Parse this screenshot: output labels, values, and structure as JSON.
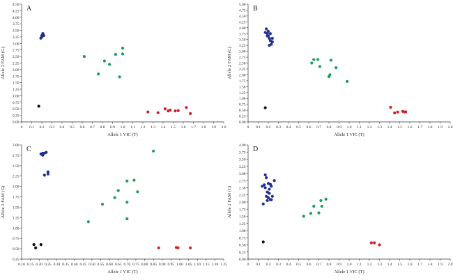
{
  "chart_data": [
    {
      "type": "scatter",
      "panel_label": "A",
      "xlabel": "Allele 1 VIC (T)",
      "ylabel": "Allele 2 FAM (G)",
      "xlim": [
        0,
        2.0
      ],
      "ylim": [
        0,
        4.5
      ],
      "x_ticks": [
        "0",
        "0.1",
        "0.2",
        "0.3",
        "0.4",
        "0.5",
        "0.6",
        "0.7",
        "0.8",
        "0.9",
        "1.0",
        "1.1",
        "1.2",
        "1.3",
        "1.4",
        "1.5",
        "1.6",
        "1.7",
        "1.8",
        "1.9",
        "2.0"
      ],
      "y_ticks": [
        "0.00",
        "0.25",
        "0.50",
        "0.75",
        "1.00",
        "1.25",
        "1.50",
        "1.75",
        "2.00",
        "2.25",
        "2.50",
        "2.75",
        "3.00",
        "3.25",
        "3.50",
        "3.75",
        "4.00",
        "4.25",
        "4.50"
      ],
      "series": [
        {
          "color": "#1f2e8f",
          "points": [
            [
              0.19,
              3.2
            ],
            [
              0.2,
              3.3
            ],
            [
              0.21,
              3.38
            ],
            [
              0.22,
              3.3
            ],
            [
              0.2,
              3.25
            ]
          ]
        },
        {
          "color": "#1a9e57",
          "points": [
            [
              0.62,
              2.5
            ],
            [
              0.76,
              1.83
            ],
            [
              0.82,
              2.33
            ],
            [
              0.87,
              2.2
            ],
            [
              0.93,
              2.58
            ],
            [
              0.97,
              1.72
            ],
            [
              1.0,
              2.6
            ],
            [
              1.0,
              2.82
            ]
          ]
        },
        {
          "color": "#d0202e",
          "points": [
            [
              1.25,
              0.38
            ],
            [
              1.35,
              0.35
            ],
            [
              1.42,
              0.5
            ],
            [
              1.45,
              0.42
            ],
            [
              1.47,
              0.45
            ],
            [
              1.52,
              0.42
            ],
            [
              1.55,
              0.43
            ],
            [
              1.63,
              0.55
            ],
            [
              1.67,
              0.32
            ]
          ]
        },
        {
          "color": "#111111",
          "points": [
            [
              0.17,
              0.6
            ]
          ]
        }
      ]
    },
    {
      "type": "scatter",
      "panel_label": "B",
      "xlabel": "Allele 1 VIC (T)",
      "ylabel": "Allele 2 FAM (C)",
      "xlim": [
        0,
        2.0
      ],
      "ylim": [
        0,
        5.0
      ],
      "x_ticks": [
        "0",
        "0.1",
        "0.2",
        "0.3",
        "0.4",
        "0.5",
        "0.6",
        "0.7",
        "0.8",
        "0.9",
        "1.0",
        "1.1",
        "1.2",
        "1.3",
        "1.4",
        "1.5",
        "1.6",
        "1.7",
        "1.8",
        "1.9",
        "2.0"
      ],
      "y_ticks": [
        "0.00",
        "0.25",
        "0.50",
        "0.75",
        "1.00",
        "1.25",
        "1.50",
        "1.75",
        "2.00",
        "2.25",
        "2.50",
        "2.75",
        "3.00",
        "3.25",
        "3.50",
        "3.75",
        "4.00",
        "4.25",
        "4.50",
        "4.75",
        "5.00"
      ],
      "series": [
        {
          "color": "#1f2e8f",
          "points": [
            [
              0.17,
              3.8
            ],
            [
              0.18,
              3.95
            ],
            [
              0.19,
              3.75
            ],
            [
              0.2,
              3.85
            ],
            [
              0.2,
              3.65
            ],
            [
              0.21,
              3.55
            ],
            [
              0.22,
              3.75
            ],
            [
              0.22,
              3.45
            ],
            [
              0.23,
              3.3
            ],
            [
              0.24,
              3.4
            ],
            [
              0.24,
              3.55
            ],
            [
              0.21,
              3.25
            ],
            [
              0.19,
              3.65
            ]
          ]
        },
        {
          "color": "#1a9e57",
          "points": [
            [
              0.63,
              2.5
            ],
            [
              0.65,
              2.65
            ],
            [
              0.69,
              2.65
            ],
            [
              0.71,
              2.35
            ],
            [
              0.8,
              1.92
            ],
            [
              0.81,
              2.0
            ],
            [
              0.82,
              2.62
            ],
            [
              0.87,
              2.3
            ],
            [
              0.98,
              1.72
            ]
          ]
        },
        {
          "color": "#d0202e",
          "points": [
            [
              1.41,
              0.62
            ],
            [
              1.45,
              0.38
            ],
            [
              1.48,
              0.42
            ],
            [
              1.53,
              0.45
            ],
            [
              1.55,
              0.42
            ],
            [
              1.56,
              0.43
            ]
          ]
        },
        {
          "color": "#111111",
          "points": [
            [
              0.17,
              0.6
            ]
          ]
        }
      ]
    },
    {
      "type": "scatter",
      "panel_label": "C",
      "xlabel": "Allele 1 VIC (T)",
      "ylabel": "Allele 2 FAM (G)",
      "xlim": [
        0.1,
        1.25
      ],
      "ylim": [
        0.25,
        3.0
      ],
      "x_ticks": [
        "0.10",
        "0.15",
        "0.20",
        "0.25",
        "0.30",
        "0.35",
        "0.40",
        "0.45",
        "0.50",
        "0.55",
        "0.60",
        "0.65",
        "0.70",
        "0.75",
        "0.80",
        "0.85",
        "0.90",
        "0.95",
        "1.00",
        "1.05",
        "1.10",
        "1.15",
        "1.20",
        "1.25"
      ],
      "y_ticks": [
        "0.25",
        "0.50",
        "0.75",
        "1.00",
        "1.25",
        "1.50",
        "1.75",
        "2.00",
        "2.25",
        "2.50",
        "2.75",
        "3.00"
      ],
      "series": [
        {
          "color": "#1f2e8f",
          "points": [
            [
              0.21,
              2.78
            ],
            [
              0.22,
              2.75
            ],
            [
              0.22,
              2.8
            ],
            [
              0.23,
              2.8
            ],
            [
              0.24,
              2.82
            ],
            [
              0.23,
              2.27
            ],
            [
              0.25,
              2.3
            ],
            [
              0.25,
              2.35
            ]
          ]
        },
        {
          "color": "#1a9e57",
          "points": [
            [
              0.48,
              1.15
            ],
            [
              0.56,
              1.57
            ],
            [
              0.63,
              1.73
            ],
            [
              0.65,
              1.9
            ],
            [
              0.7,
              2.13
            ],
            [
              0.7,
              1.62
            ],
            [
              0.7,
              1.22
            ],
            [
              0.74,
              2.15
            ],
            [
              0.76,
              1.87
            ],
            [
              0.85,
              2.85
            ]
          ]
        },
        {
          "color": "#d0202e",
          "points": [
            [
              0.88,
              0.52
            ],
            [
              0.98,
              0.53
            ],
            [
              0.99,
              0.52
            ],
            [
              1.06,
              0.52
            ]
          ]
        },
        {
          "color": "#111111",
          "points": [
            [
              0.17,
              0.6
            ],
            [
              0.18,
              0.52
            ],
            [
              0.21,
              0.6
            ]
          ]
        }
      ]
    },
    {
      "type": "scatter",
      "panel_label": "D",
      "xlabel": "Allele 1 VIC (T)",
      "ylabel": "Allele 2 FAM (C)",
      "xlim": [
        0,
        2.0
      ],
      "ylim": [
        0,
        4.0
      ],
      "x_ticks": [
        "0",
        "0.1",
        "0.2",
        "0.3",
        "0.4",
        "0.5",
        "0.6",
        "0.7",
        "0.8",
        "0.9",
        "1.0",
        "1.1",
        "1.2",
        "1.3",
        "1.4",
        "1.5",
        "1.6",
        "1.7",
        "1.8",
        "1.9",
        "2.0"
      ],
      "y_ticks": [
        "0.00",
        "0.25",
        "0.50",
        "0.75",
        "1.00",
        "1.25",
        "1.50",
        "1.75",
        "2.00",
        "2.25",
        "2.50",
        "2.75",
        "3.00",
        "3.25",
        "3.50",
        "3.75",
        "4.00"
      ],
      "series": [
        {
          "color": "#1f2e8f",
          "points": [
            [
              0.14,
              2.55
            ],
            [
              0.15,
              1.93
            ],
            [
              0.16,
              2.6
            ],
            [
              0.17,
              2.5
            ],
            [
              0.17,
              2.95
            ],
            [
              0.18,
              2.85
            ],
            [
              0.18,
              2.2
            ],
            [
              0.19,
              2.35
            ],
            [
              0.19,
              2.05
            ],
            [
              0.2,
              2.65
            ],
            [
              0.2,
              2.15
            ],
            [
              0.21,
              2.45
            ],
            [
              0.21,
              2.3
            ],
            [
              0.22,
              2.62
            ],
            [
              0.22,
              2.08
            ],
            [
              0.23,
              2.55
            ],
            [
              0.23,
              2.08
            ],
            [
              0.24,
              2.2
            ],
            [
              0.26,
              2.75
            ]
          ]
        },
        {
          "color": "#1a9e57",
          "points": [
            [
              0.55,
              1.5
            ],
            [
              0.62,
              1.6
            ],
            [
              0.65,
              1.85
            ],
            [
              0.7,
              1.62
            ],
            [
              0.72,
              2.05
            ],
            [
              0.73,
              1.85
            ],
            [
              0.77,
              2.1
            ]
          ]
        },
        {
          "color": "#d0202e",
          "points": [
            [
              1.22,
              0.57
            ],
            [
              1.25,
              0.57
            ],
            [
              1.3,
              0.5
            ]
          ]
        },
        {
          "color": "#111111",
          "points": [
            [
              0.15,
              0.6
            ]
          ]
        }
      ]
    }
  ]
}
